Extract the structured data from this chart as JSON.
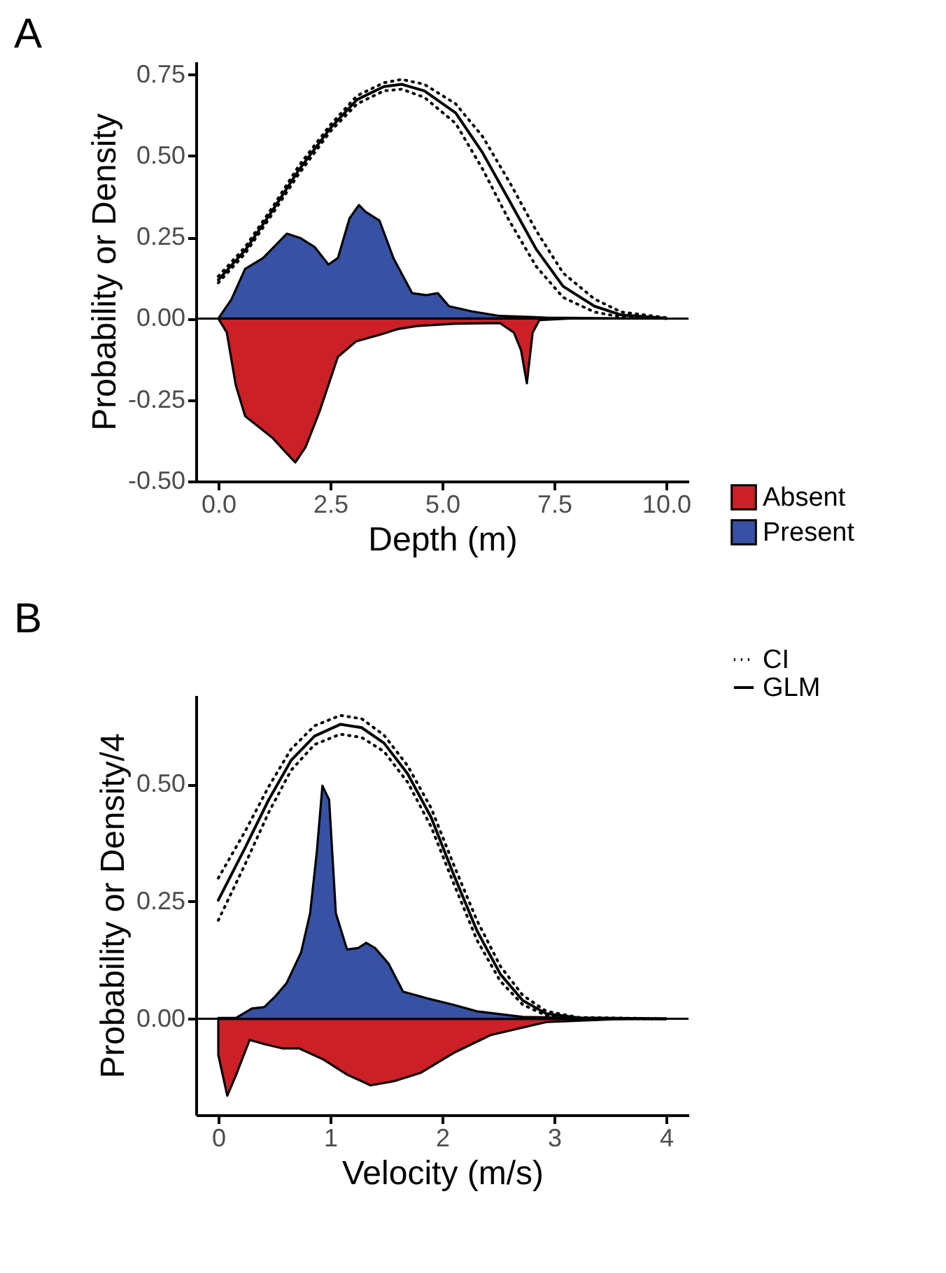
{
  "chart_data": [
    {
      "type": "area",
      "title": "A",
      "xlabel": "Depth (m)",
      "ylabel": "Probability or Density",
      "xlim": [
        -0.5,
        10.5
      ],
      "ylim": [
        -0.5,
        0.79
      ],
      "xticks": [
        {
          "value": 0,
          "label": "0.0"
        },
        {
          "value": 2.5,
          "label": "2.5"
        },
        {
          "value": 5,
          "label": "5.0"
        },
        {
          "value": 7.5,
          "label": "7.5"
        },
        {
          "value": 10,
          "label": "10.0"
        }
      ],
      "yticks": [
        {
          "value": -0.5,
          "label": "-0.50"
        },
        {
          "value": -0.25,
          "label": "-0.25"
        },
        {
          "value": 0,
          "label": "0.00"
        },
        {
          "value": 0.25,
          "label": "0.25"
        },
        {
          "value": 0.5,
          "label": "0.50"
        },
        {
          "value": 0.75,
          "label": "0.75"
        }
      ],
      "legend": "bottom right",
      "ref_lines": [
        {
          "axis": "y",
          "value": 0,
          "color": "#000000"
        }
      ],
      "series": [
        {
          "name": "Absent",
          "color": "#cc2027",
          "x": [
            0,
            0.19,
            0.39,
            0.6,
            0.91,
            1.22,
            1.53,
            1.72,
            1.95,
            2.26,
            2.67,
            3.08,
            3.6,
            4.02,
            4.43,
            5.26,
            6.29,
            6.6,
            6.76,
            6.89,
            7.02,
            7.17,
            7.85
          ],
          "values": [
            0,
            -0.043,
            -0.205,
            -0.3,
            -0.334,
            -0.368,
            -0.415,
            -0.442,
            -0.395,
            -0.286,
            -0.118,
            -0.07,
            -0.05,
            -0.032,
            -0.023,
            -0.016,
            -0.014,
            -0.043,
            -0.097,
            -0.199,
            -0.043,
            -0.005,
            0
          ]
        },
        {
          "name": "Present",
          "color": "#3752a4",
          "x": [
            0,
            0.29,
            0.6,
            1.0,
            1.53,
            1.84,
            2.15,
            2.46,
            2.67,
            2.93,
            3.14,
            3.29,
            3.6,
            3.91,
            4.33,
            4.64,
            4.9,
            5.15,
            5.67,
            6.29,
            7.33,
            9.4
          ],
          "values": [
            0,
            0.058,
            0.153,
            0.186,
            0.261,
            0.247,
            0.22,
            0.166,
            0.186,
            0.308,
            0.349,
            0.328,
            0.301,
            0.186,
            0.078,
            0.072,
            0.078,
            0.038,
            0.022,
            0.008,
            0.003,
            0
          ]
        },
        {
          "type": "line",
          "color": "#000000",
          "line_style": "dotted",
          "x": [
            0,
            0.6,
            1.2,
            1.8,
            2.5,
            3.1,
            3.7,
            4.1,
            4.6,
            5.3,
            5.9,
            6.5,
            7.1,
            7.7,
            8.4,
            9,
            10
          ],
          "values": [
            0.13,
            0.22,
            0.34,
            0.47,
            0.595,
            0.685,
            0.725,
            0.735,
            0.72,
            0.66,
            0.56,
            0.42,
            0.27,
            0.14,
            0.06,
            0.02,
            0.003
          ]
        },
        {
          "type": "line",
          "color": "#000000",
          "line_style": "dotted",
          "x": [
            0,
            0.6,
            1.2,
            1.8,
            2.5,
            3.1,
            3.7,
            4.1,
            4.6,
            5.3,
            5.9,
            6.5,
            7.1,
            7.7,
            8.4,
            9,
            10
          ],
          "values": [
            0.11,
            0.2,
            0.32,
            0.445,
            0.575,
            0.66,
            0.7,
            0.705,
            0.68,
            0.6,
            0.46,
            0.3,
            0.16,
            0.065,
            0.02,
            0.005,
            0
          ]
        },
        {
          "type": "line",
          "color": "#000000",
          "line_style": "solid",
          "x": [
            0,
            0.6,
            1.2,
            1.8,
            2.5,
            3.1,
            3.7,
            4.1,
            4.6,
            5.3,
            5.9,
            6.5,
            7.1,
            7.7,
            8.4,
            9,
            10
          ],
          "values": [
            0.119,
            0.21,
            0.33,
            0.457,
            0.585,
            0.673,
            0.713,
            0.72,
            0.7,
            0.632,
            0.51,
            0.362,
            0.213,
            0.099,
            0.038,
            0.011,
            0.001
          ]
        }
      ]
    },
    {
      "type": "area",
      "title": "B",
      "xlabel": "Velocity (m/s)",
      "ylabel": "Probability or Density/4",
      "xlim": [
        -0.2,
        4.2
      ],
      "ylim": [
        -0.205,
        0.69
      ],
      "xticks": [
        0,
        1,
        2,
        3,
        4
      ],
      "yticks": [
        {
          "value": 0,
          "label": "0.00"
        },
        {
          "value": 0.25,
          "label": "0.25"
        },
        {
          "value": 0.5,
          "label": "0.50"
        }
      ],
      "legend": "top right",
      "ref_lines": [
        {
          "axis": "y",
          "value": 0,
          "color": "#000000"
        }
      ],
      "series": [
        {
          "color": "#cc2027",
          "x": [
            0,
            0.08,
            0.16,
            0.28,
            0.41,
            0.57,
            0.72,
            0.94,
            1.15,
            1.36,
            1.57,
            1.81,
            2.1,
            2.43,
            2.93,
            3.55,
            4
          ],
          "values": [
            -0.077,
            -0.164,
            -0.119,
            -0.045,
            -0.054,
            -0.063,
            -0.063,
            -0.087,
            -0.119,
            -0.142,
            -0.133,
            -0.115,
            -0.073,
            -0.035,
            -0.007,
            -0.001,
            0
          ]
        },
        {
          "color": "#3752a4",
          "x": [
            0,
            0.16,
            0.3,
            0.41,
            0.51,
            0.61,
            0.74,
            0.82,
            0.88,
            0.93,
            0.99,
            1.05,
            1.15,
            1.25,
            1.32,
            1.4,
            1.52,
            1.65,
            1.86,
            2.1,
            2.31,
            2.72,
            3.35,
            4
          ],
          "values": [
            0.002,
            0.002,
            0.022,
            0.025,
            0.048,
            0.076,
            0.142,
            0.225,
            0.356,
            0.497,
            0.467,
            0.225,
            0.148,
            0.151,
            0.162,
            0.151,
            0.118,
            0.058,
            0.044,
            0.03,
            0.016,
            0.004,
            0.001,
            0
          ]
        },
        {
          "name": "CI",
          "type": "line",
          "color": "#000000",
          "line_style": "dotted",
          "x": [
            0,
            0.24,
            0.45,
            0.65,
            0.86,
            1.09,
            1.28,
            1.48,
            1.69,
            1.9,
            2.1,
            2.31,
            2.52,
            2.72,
            2.93,
            3.22,
            4
          ],
          "values": [
            0.3,
            0.4,
            0.495,
            0.575,
            0.625,
            0.647,
            0.64,
            0.605,
            0.54,
            0.45,
            0.33,
            0.21,
            0.112,
            0.05,
            0.016,
            0.003,
            0
          ]
        },
        {
          "type": "line",
          "color": "#000000",
          "line_style": "dotted",
          "x": [
            0,
            0.24,
            0.45,
            0.65,
            0.86,
            1.09,
            1.28,
            1.48,
            1.69,
            1.9,
            2.1,
            2.31,
            2.52,
            2.72,
            2.93,
            3.22,
            4
          ],
          "values": [
            0.21,
            0.33,
            0.44,
            0.53,
            0.585,
            0.607,
            0.6,
            0.57,
            0.505,
            0.41,
            0.29,
            0.168,
            0.08,
            0.03,
            0.007,
            0.001,
            0
          ]
        },
        {
          "name": "GLM",
          "type": "line",
          "color": "#000000",
          "line_style": "solid",
          "x": [
            0,
            0.24,
            0.45,
            0.65,
            0.86,
            1.09,
            1.28,
            1.48,
            1.69,
            1.9,
            2.1,
            2.31,
            2.52,
            2.72,
            2.93,
            3.22,
            4
          ],
          "values": [
            0.253,
            0.365,
            0.467,
            0.551,
            0.603,
            0.628,
            0.621,
            0.588,
            0.523,
            0.43,
            0.309,
            0.188,
            0.095,
            0.039,
            0.011,
            0.002,
            0
          ]
        }
      ]
    }
  ]
}
